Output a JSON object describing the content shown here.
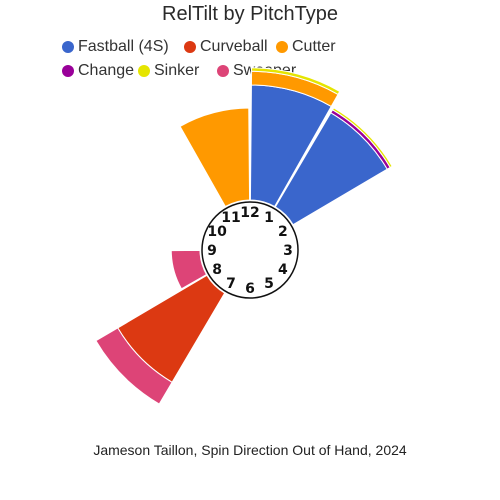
{
  "chart_data": {
    "type": "polar-bar",
    "title": "RelTilt by PitchType",
    "caption": "Jameson Taillon, Spin Direction Out of Hand, 2024",
    "legend_position": "top-left",
    "clock_labels": [
      "12",
      "1",
      "2",
      "3",
      "4",
      "5",
      "6",
      "7",
      "8",
      "9",
      "10",
      "11"
    ],
    "categories": [
      "11:30",
      "12:30",
      "1:30",
      "7:30",
      "8:30"
    ],
    "series": [
      {
        "name": "Fastball (4S)",
        "color": "#3a66cc",
        "values": [
          0,
          100,
          95,
          0,
          0
        ]
      },
      {
        "name": "Curveball",
        "color": "#dc3912",
        "values": [
          0,
          0,
          0,
          90,
          0
        ]
      },
      {
        "name": "Cutter",
        "color": "#ff9900",
        "values": [
          80,
          12,
          0,
          0,
          0
        ]
      },
      {
        "name": "Change",
        "color": "#990099",
        "values": [
          0,
          0,
          3,
          0,
          0
        ]
      },
      {
        "name": "Sinker",
        "color": "#e5e500",
        "values": [
          0,
          3,
          2,
          0,
          0
        ]
      },
      {
        "name": "Sweeper",
        "color": "#dd4477",
        "values": [
          0,
          0,
          0,
          22,
          25
        ]
      }
    ]
  }
}
